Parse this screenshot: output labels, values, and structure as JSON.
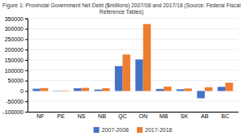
{
  "chart_data": {
    "type": "bar",
    "title": "Figure 1: Provincial Government Net Debt ($millions) 2007/08 and 2017/18 (Source: Federal Fiscal\nReference Tables)",
    "categories": [
      "NF",
      "PE",
      "NS",
      "NB",
      "QC",
      "ON",
      "MB",
      "SK",
      "AB",
      "BC"
    ],
    "series": [
      {
        "name": "2007-2008",
        "color": "#4472c4",
        "values": [
          11000,
          1500,
          13000,
          7000,
          120000,
          152000,
          10000,
          8000,
          -35000,
          20000
        ]
      },
      {
        "name": "2017-2018",
        "color": "#ed7d31",
        "values": [
          14000,
          2500,
          15000,
          13000,
          176000,
          323000,
          21000,
          12000,
          18000,
          40000
        ]
      }
    ],
    "ylim": [
      -100000,
      350000
    ],
    "yticks": [
      -100000,
      -50000,
      0,
      50000,
      100000,
      150000,
      200000,
      250000,
      300000,
      350000
    ],
    "grid": true,
    "legend": "bottom"
  }
}
